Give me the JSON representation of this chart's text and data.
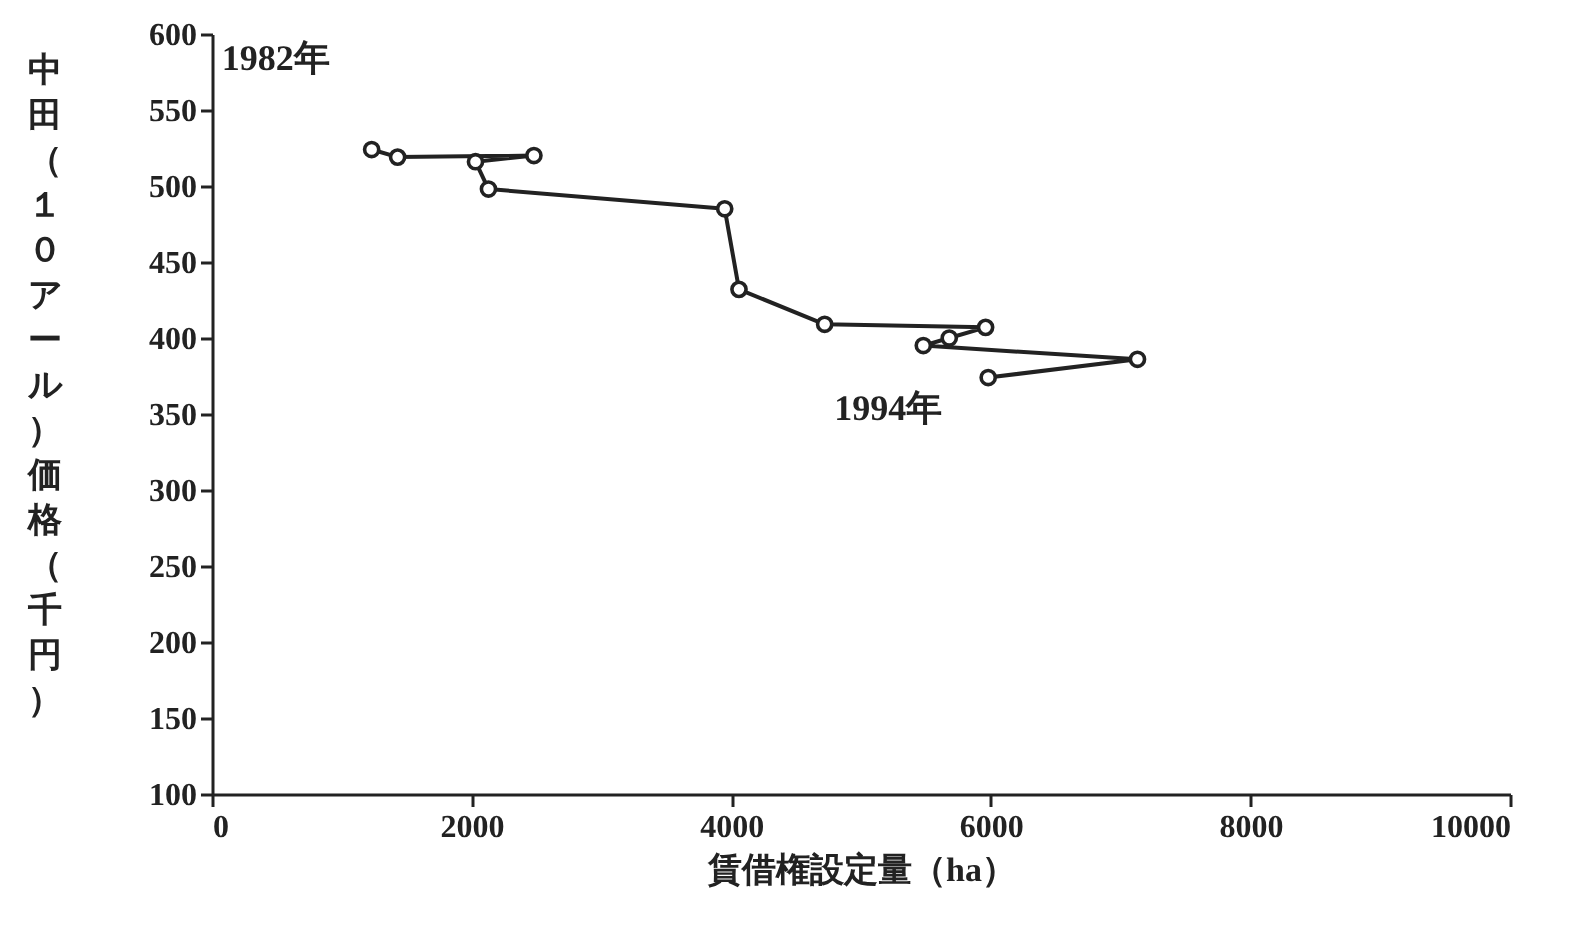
{
  "chart_data": {
    "type": "line",
    "xlabel": "賃借権設定量（ha）",
    "ylabel": "中田（１０アール）価格（千円）",
    "x": [
      1230,
      1430,
      2480,
      2030,
      2130,
      3950,
      4060,
      4720,
      5960,
      5680,
      5480,
      7130,
      5980
    ],
    "series": [
      {
        "color": "#222222",
        "values": [
          524,
          519,
          520,
          516,
          498,
          485,
          432,
          409,
          407,
          400,
          395,
          386,
          374
        ]
      }
    ],
    "xlim": [
      0,
      10000
    ],
    "xticks": [
      0,
      2000,
      4000,
      6000,
      8000,
      10000
    ],
    "ylim": [
      100,
      600
    ],
    "yticks": [
      100,
      150,
      200,
      250,
      300,
      350,
      400,
      450,
      500,
      550,
      600
    ],
    "grid": false,
    "marker": "circle",
    "line_style": "solid",
    "annotations": [
      {
        "text": "1982年",
        "x": 1230,
        "y": 524
      },
      {
        "text": "1994年",
        "x": 5980,
        "y": 374
      }
    ]
  }
}
